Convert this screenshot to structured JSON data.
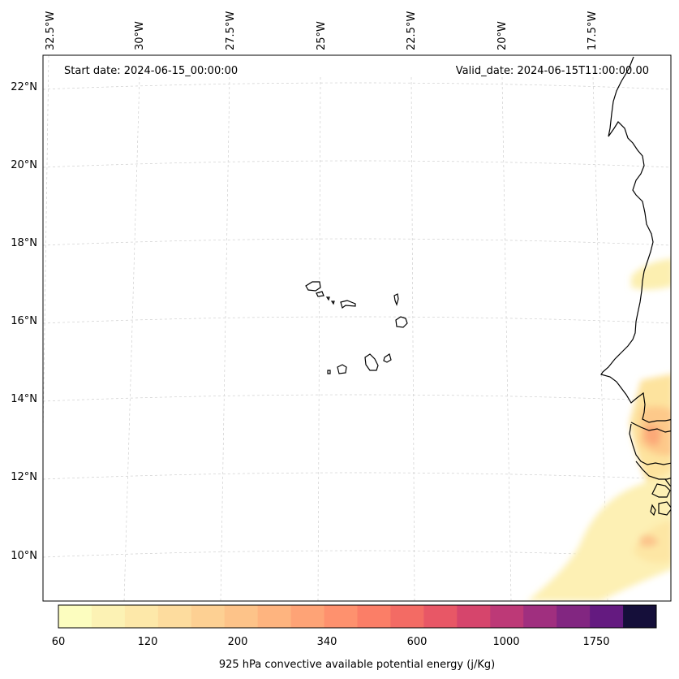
{
  "map": {
    "start_date": "Start date: 2024-06-15_00:00:00",
    "valid_date": "Valid_date: 2024-06-15T11:00:00.00",
    "lon_labels": [
      "32.5°W",
      "30°W",
      "27.5°W",
      "25°W",
      "22.5°W",
      "20°W",
      "17.5°W"
    ],
    "lat_labels": [
      "22°N",
      "20°N",
      "18°N",
      "16°N",
      "14°N",
      "12°N",
      "10°N"
    ],
    "gridlines": true,
    "features": [
      "Cape Verde islands",
      "West African coastline"
    ]
  },
  "colorbar": {
    "label": "925 hPa convective available potential energy (j/Kg)",
    "tick_labels": [
      "60",
      "120",
      "200",
      "340",
      "600",
      "1000",
      "1750"
    ],
    "colors": [
      "#fcfdbf",
      "#fcf2b4",
      "#fde8a9",
      "#fddc9e",
      "#fdd093",
      "#fdc389",
      "#feb47f",
      "#fea376",
      "#fe916e",
      "#fb7e67",
      "#f36b64",
      "#e85766",
      "#d6456c",
      "#bd3977",
      "#a02f7f",
      "#822681",
      "#641a80",
      "#150f3a"
    ]
  }
}
